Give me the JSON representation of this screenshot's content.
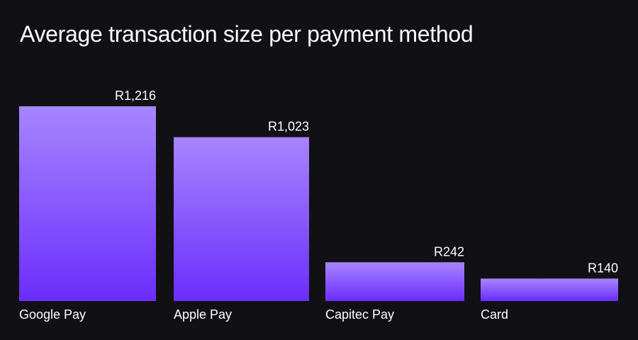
{
  "chart_data": {
    "type": "bar",
    "title": "Average transaction size per payment method",
    "xlabel": "",
    "ylabel": "",
    "categories": [
      "Google Pay",
      "Apple Pay",
      "Capitec Pay",
      "Card"
    ],
    "values": [
      1216,
      1023,
      242,
      140
    ],
    "value_labels": [
      "R1,216",
      "R1,023",
      "R242",
      "R140"
    ],
    "ylim": [
      0,
      1216
    ],
    "grid": false,
    "legend": "none",
    "colors": {
      "background": "#111015",
      "bar_top": "#a785ff",
      "bar_bottom": "#6b2dfc",
      "text": "#ffffff"
    }
  }
}
